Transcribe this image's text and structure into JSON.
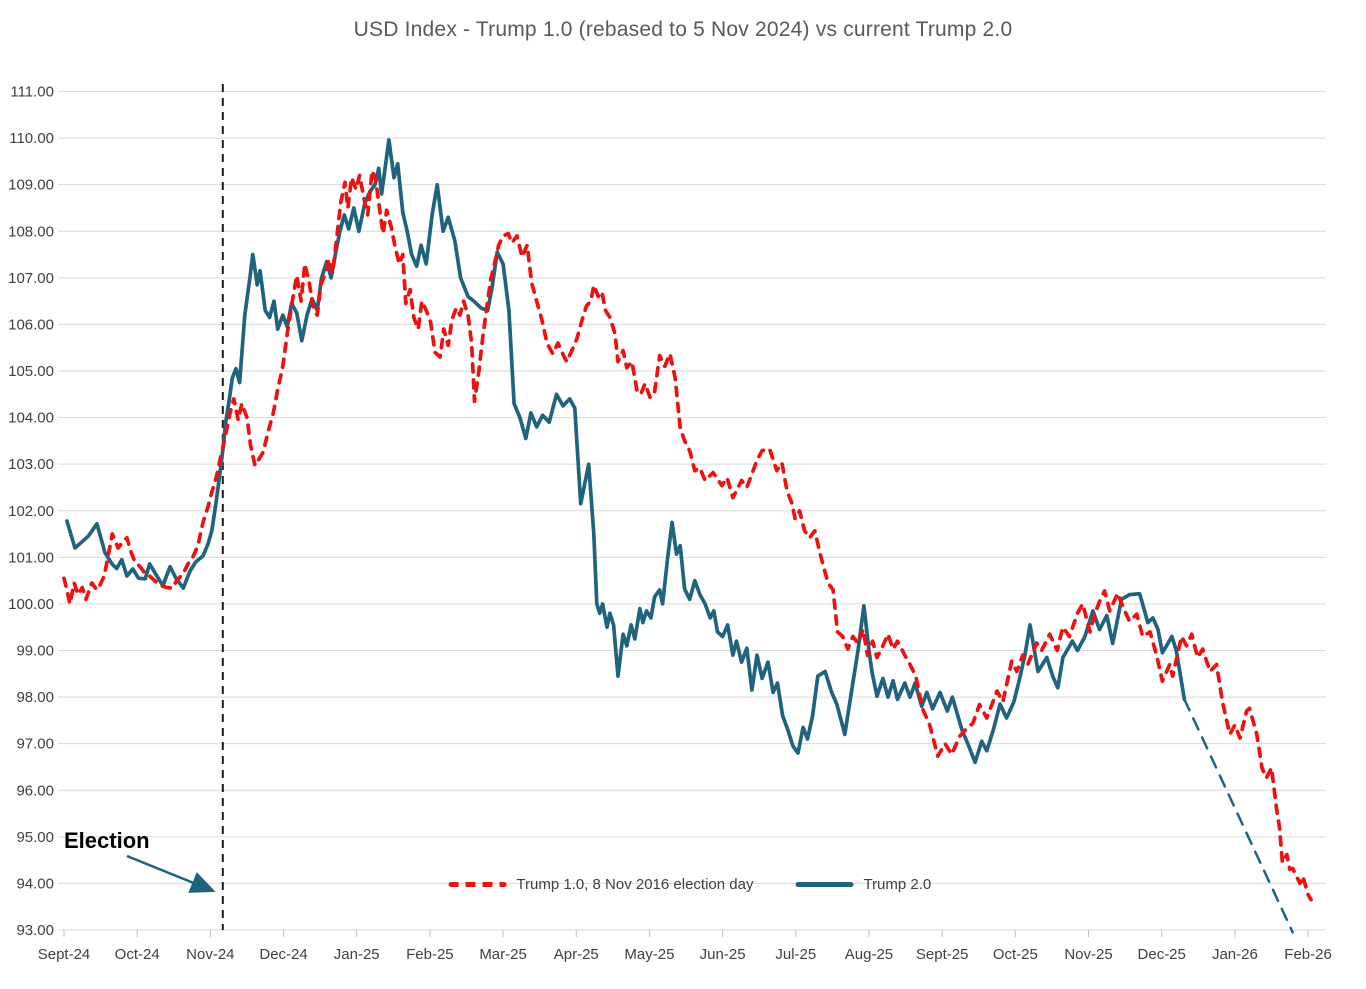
{
  "title": "USD Index - Trump 1.0  (rebased to 5 Nov 2024) vs current Trump 2.0",
  "annotation": {
    "label": "Election"
  },
  "colors": {
    "red": "#ee1111",
    "teal": "#1f637e",
    "grid": "#d9d9d9",
    "tick_text": "#404040",
    "title_text": "#595959",
    "election_line": "#1a1a1a"
  },
  "legend": [
    {
      "label": "Trump 1.0, 8 Nov 2016 election day",
      "color": "#ee1111",
      "style": "dashed"
    },
    {
      "label": "Trump 2.0",
      "color": "#1f637e",
      "style": "solid"
    }
  ],
  "chart_data": {
    "type": "line",
    "title": "USD Index - Trump 1.0  (rebased to 5 Nov 2024) vs current Trump 2.0",
    "xlabel": "",
    "ylabel": "",
    "grid": "horizontal",
    "legend_position": "bottom-center-inside",
    "ylim": [
      93,
      111
    ],
    "y_tick_step": 1,
    "y_tick_labels": [
      "93.00",
      "94.00",
      "95.00",
      "96.00",
      "97.00",
      "98.00",
      "99.00",
      "100.00",
      "101.00",
      "102.00",
      "103.00",
      "104.00",
      "105.00",
      "106.00",
      "107.00",
      "108.00",
      "109.00",
      "110.00",
      "111.00"
    ],
    "x_tick_labels": [
      "Sept-24",
      "Oct-24",
      "Nov-24",
      "Dec-24",
      "Jan-25",
      "Feb-25",
      "Mar-25",
      "Apr-25",
      "May-25",
      "Jun-25",
      "Jul-25",
      "Aug-25",
      "Sept-25",
      "Oct-25",
      "Nov-25",
      "Dec-25",
      "Jan-26",
      "Feb-26"
    ],
    "election_line_x": 2.17,
    "election_annotation": "Election",
    "series": [
      {
        "name": "Trump 2.0",
        "color": "#1f637e",
        "dash": false,
        "projection": false,
        "x": [
          0.04,
          0.15,
          0.33,
          0.45,
          0.56,
          0.66,
          0.72,
          0.79,
          0.86,
          0.94,
          1.02,
          1.11,
          1.17,
          1.27,
          1.35,
          1.45,
          1.53,
          1.63,
          1.72,
          1.8,
          1.9,
          1.97,
          2.02,
          2.08,
          2.13,
          2.17,
          2.21,
          2.25,
          2.3,
          2.35,
          2.4,
          2.47,
          2.54,
          2.58,
          2.64,
          2.68,
          2.75,
          2.81,
          2.87,
          2.92,
          2.99,
          3.05,
          3.11,
          3.18,
          3.25,
          3.32,
          3.39,
          3.46,
          3.52,
          3.59,
          3.65,
          3.72,
          3.77,
          3.83,
          3.89,
          3.96,
          4.03,
          4.11,
          4.18,
          4.25,
          4.3,
          4.34,
          4.44,
          4.51,
          4.56,
          4.63,
          4.69,
          4.75,
          4.82,
          4.88,
          4.95,
          5.03,
          5.1,
          5.18,
          5.25,
          5.34,
          5.42,
          5.52,
          5.6,
          5.7,
          5.79,
          5.85,
          5.92,
          6.0,
          6.08,
          6.15,
          6.23,
          6.31,
          6.38,
          6.46,
          6.54,
          6.63,
          6.73,
          6.82,
          6.91,
          6.98,
          7.06,
          7.17,
          7.24,
          7.28,
          7.32,
          7.36,
          7.42,
          7.46,
          7.51,
          7.57,
          7.64,
          7.69,
          7.75,
          7.8,
          7.87,
          7.91,
          7.96,
          8.02,
          8.07,
          8.14,
          8.18,
          8.25,
          8.31,
          8.37,
          8.42,
          8.48,
          8.55,
          8.62,
          8.69,
          8.76,
          8.83,
          8.88,
          8.93,
          9.0,
          9.07,
          9.14,
          9.19,
          9.26,
          9.33,
          9.4,
          9.47,
          9.54,
          9.62,
          9.69,
          9.75,
          9.82,
          9.89,
          9.96,
          10.03,
          10.1,
          10.16,
          10.23,
          10.3,
          10.4,
          10.49,
          10.56,
          10.67,
          10.77,
          10.85,
          10.93,
          11.0,
          11.04,
          11.11,
          11.19,
          11.26,
          11.33,
          11.39,
          11.49,
          11.56,
          11.63,
          11.72,
          11.79,
          11.87,
          11.97,
          12.07,
          12.14,
          12.27,
          12.35,
          12.45,
          12.54,
          12.61,
          12.7,
          12.79,
          12.88,
          12.98,
          13.06,
          13.13,
          13.2,
          13.31,
          13.43,
          13.51,
          13.58,
          13.65,
          13.78,
          13.85,
          13.95,
          14.06,
          14.15,
          14.25,
          14.33,
          14.45,
          14.56,
          14.7,
          14.81,
          14.88,
          14.95,
          15.01,
          15.14,
          15.2,
          15.31
        ],
        "y": [
          101.78,
          101.2,
          101.45,
          101.72,
          101.1,
          100.85,
          100.76,
          100.95,
          100.6,
          100.75,
          100.55,
          100.54,
          100.86,
          100.6,
          100.39,
          100.8,
          100.55,
          100.34,
          100.7,
          100.9,
          101.03,
          101.3,
          101.57,
          102.2,
          102.8,
          103.3,
          103.9,
          104.3,
          104.85,
          105.05,
          104.75,
          106.2,
          107.0,
          107.5,
          106.85,
          107.15,
          106.3,
          106.15,
          106.5,
          105.9,
          106.2,
          105.95,
          106.45,
          106.25,
          105.65,
          106.2,
          106.55,
          106.3,
          107.0,
          107.35,
          107.0,
          107.6,
          108.0,
          108.35,
          108.05,
          108.5,
          108.0,
          108.6,
          108.85,
          109.0,
          109.35,
          108.8,
          109.96,
          109.15,
          109.45,
          108.4,
          108.0,
          107.5,
          107.25,
          107.7,
          107.3,
          108.35,
          109.0,
          108.0,
          108.3,
          107.8,
          107.0,
          106.6,
          106.5,
          106.35,
          106.3,
          106.8,
          107.55,
          107.3,
          106.3,
          104.3,
          104.0,
          103.55,
          104.1,
          103.8,
          104.05,
          103.9,
          104.5,
          104.25,
          104.4,
          104.2,
          102.15,
          103.0,
          101.5,
          100.0,
          99.8,
          100.0,
          99.5,
          99.8,
          99.55,
          98.45,
          99.35,
          99.1,
          99.55,
          99.25,
          99.9,
          99.6,
          99.85,
          99.7,
          100.15,
          100.3,
          100.0,
          101.0,
          101.75,
          101.07,
          101.25,
          100.32,
          100.1,
          100.5,
          100.2,
          100.0,
          99.7,
          99.85,
          99.4,
          99.3,
          99.55,
          98.9,
          99.2,
          98.75,
          99.05,
          98.15,
          98.9,
          98.4,
          98.75,
          98.1,
          98.3,
          97.6,
          97.3,
          96.95,
          96.8,
          97.35,
          97.1,
          97.6,
          98.45,
          98.55,
          98.1,
          97.85,
          97.2,
          98.2,
          99.0,
          99.96,
          99.0,
          98.55,
          98.02,
          98.4,
          98.0,
          98.35,
          97.95,
          98.3,
          98.0,
          98.3,
          97.8,
          98.1,
          97.75,
          98.1,
          97.7,
          98.0,
          97.3,
          97.0,
          96.6,
          97.05,
          96.85,
          97.3,
          97.85,
          97.55,
          97.9,
          98.4,
          98.9,
          99.55,
          98.55,
          98.85,
          98.45,
          98.2,
          98.85,
          99.2,
          99.0,
          99.3,
          99.85,
          99.45,
          99.75,
          99.15,
          100.1,
          100.2,
          100.22,
          99.6,
          99.7,
          99.45,
          98.95,
          99.3,
          99.0,
          97.95
        ]
      },
      {
        "name": "Trump 2.0 dashed extension",
        "color": "#1f637e",
        "dash": true,
        "projection": true,
        "x": [
          15.31,
          16.79
        ],
        "y": [
          97.95,
          92.95
        ]
      },
      {
        "name": "Trump 1.0, 8 Nov 2016 election day",
        "color": "#ee1111",
        "dash": true,
        "projection": false,
        "x": [
          0.0,
          0.04,
          0.08,
          0.14,
          0.19,
          0.25,
          0.3,
          0.38,
          0.45,
          0.49,
          0.55,
          0.6,
          0.66,
          0.74,
          0.81,
          0.86,
          0.92,
          0.97,
          1.04,
          1.11,
          1.17,
          1.24,
          1.31,
          1.41,
          1.48,
          1.54,
          1.63,
          1.69,
          1.76,
          1.83,
          1.9,
          1.97,
          2.02,
          2.06,
          2.1,
          2.14,
          2.17,
          2.23,
          2.27,
          2.32,
          2.38,
          2.43,
          2.5,
          2.55,
          2.61,
          2.66,
          2.72,
          2.79,
          2.86,
          2.92,
          2.99,
          3.06,
          3.13,
          3.18,
          3.24,
          3.29,
          3.35,
          3.4,
          3.46,
          3.51,
          3.57,
          3.62,
          3.67,
          3.73,
          3.78,
          3.84,
          3.88,
          3.93,
          3.99,
          4.04,
          4.1,
          4.15,
          4.21,
          4.26,
          4.32,
          4.36,
          4.41,
          4.47,
          4.52,
          4.58,
          4.63,
          4.67,
          4.73,
          4.78,
          4.84,
          4.89,
          4.95,
          5.01,
          5.07,
          5.14,
          5.19,
          5.25,
          5.3,
          5.36,
          5.41,
          5.46,
          5.52,
          5.57,
          5.61,
          5.67,
          5.72,
          5.78,
          5.83,
          5.89,
          5.94,
          6.0,
          6.07,
          6.12,
          6.19,
          6.26,
          6.33,
          6.39,
          6.45,
          6.53,
          6.6,
          6.68,
          6.75,
          6.82,
          6.87,
          6.94,
          7.01,
          7.08,
          7.14,
          7.2,
          7.24,
          7.3,
          7.35,
          7.4,
          7.46,
          7.53,
          7.57,
          7.64,
          7.69,
          7.76,
          7.83,
          7.88,
          7.94,
          8.01,
          8.07,
          8.14,
          8.21,
          8.28,
          8.35,
          8.42,
          8.48,
          8.55,
          8.62,
          8.69,
          8.76,
          8.87,
          8.99,
          9.06,
          9.14,
          9.26,
          9.33,
          9.47,
          9.54,
          9.64,
          9.74,
          9.81,
          9.88,
          9.95,
          9.99,
          10.05,
          10.12,
          10.19,
          10.26,
          10.33,
          10.37,
          10.44,
          10.51,
          10.57,
          10.64,
          10.71,
          10.78,
          10.85,
          10.92,
          10.98,
          11.05,
          11.11,
          11.19,
          11.26,
          11.33,
          11.39,
          11.49,
          11.56,
          11.64,
          11.73,
          11.83,
          11.94,
          12.04,
          12.13,
          12.24,
          12.32,
          12.42,
          12.51,
          12.61,
          12.75,
          12.83,
          12.95,
          13.02,
          13.1,
          13.17,
          13.29,
          13.36,
          13.47,
          13.57,
          13.65,
          13.74,
          13.85,
          13.92,
          14.02,
          14.09,
          14.15,
          14.22,
          14.29,
          14.4,
          14.48,
          14.56,
          14.66,
          14.74,
          14.84,
          14.93,
          15.01,
          15.11,
          15.15,
          15.27,
          15.34,
          15.41,
          15.49,
          15.56,
          15.66,
          15.75,
          15.83,
          15.93,
          16.0,
          16.07,
          16.16,
          16.2,
          16.3,
          16.37,
          16.43,
          16.5,
          16.57,
          16.61,
          16.65,
          16.71,
          16.75,
          16.79,
          16.89,
          16.93,
          17.0,
          17.04
        ],
        "y": [
          100.55,
          100.3,
          100.0,
          100.45,
          100.2,
          100.35,
          100.1,
          100.45,
          100.3,
          100.4,
          100.6,
          101.0,
          101.5,
          101.2,
          101.35,
          101.42,
          101.1,
          100.9,
          100.8,
          100.65,
          100.6,
          100.5,
          100.4,
          100.35,
          100.34,
          100.5,
          100.65,
          100.85,
          101.0,
          101.25,
          101.75,
          102.1,
          102.4,
          102.6,
          102.85,
          103.15,
          103.35,
          103.8,
          104.1,
          104.4,
          103.95,
          104.3,
          104.0,
          103.4,
          102.97,
          103.1,
          103.25,
          103.7,
          104.1,
          104.6,
          105.1,
          105.9,
          106.6,
          107.05,
          106.5,
          107.3,
          106.9,
          106.4,
          106.2,
          106.85,
          107.1,
          107.4,
          107.1,
          107.9,
          108.6,
          109.05,
          108.5,
          109.15,
          108.9,
          109.2,
          108.7,
          108.35,
          109.3,
          109.1,
          108.4,
          107.95,
          108.45,
          108.1,
          107.7,
          107.3,
          107.5,
          106.45,
          106.75,
          106.15,
          105.9,
          106.5,
          106.3,
          106.05,
          105.4,
          105.3,
          105.9,
          105.55,
          106.1,
          106.35,
          106.2,
          106.5,
          106.2,
          105.6,
          104.35,
          105.0,
          105.7,
          106.4,
          106.95,
          107.35,
          107.7,
          107.9,
          107.95,
          107.75,
          107.9,
          107.45,
          107.7,
          106.9,
          106.55,
          106.1,
          105.6,
          105.37,
          105.6,
          105.35,
          105.2,
          105.44,
          105.7,
          106.1,
          106.4,
          106.5,
          106.84,
          106.6,
          106.7,
          106.3,
          106.15,
          105.8,
          105.2,
          105.44,
          105.07,
          105.2,
          104.58,
          104.5,
          104.73,
          104.43,
          104.55,
          105.33,
          105.1,
          105.37,
          104.86,
          103.78,
          103.5,
          103.29,
          102.86,
          102.92,
          102.65,
          102.82,
          102.54,
          102.71,
          102.28,
          102.65,
          102.5,
          103.08,
          103.29,
          103.33,
          102.86,
          103.03,
          102.43,
          102.15,
          101.83,
          102.0,
          101.57,
          101.42,
          101.57,
          101.1,
          100.85,
          100.45,
          100.3,
          99.4,
          99.3,
          99.03,
          99.3,
          99.15,
          99.45,
          98.9,
          99.2,
          98.85,
          99.1,
          99.35,
          99.03,
          99.2,
          98.9,
          98.7,
          98.45,
          97.76,
          97.4,
          96.73,
          97.0,
          96.77,
          97.16,
          97.3,
          97.44,
          97.84,
          97.55,
          98.13,
          97.9,
          98.77,
          98.55,
          98.9,
          98.7,
          99.16,
          99.0,
          99.35,
          99.0,
          99.5,
          99.3,
          99.8,
          100.0,
          99.4,
          99.8,
          100.05,
          100.28,
          99.85,
          100.23,
          99.9,
          99.63,
          99.78,
          99.3,
          99.4,
          98.9,
          98.34,
          98.7,
          98.45,
          99.3,
          99.1,
          99.35,
          98.85,
          99.03,
          98.55,
          98.7,
          97.9,
          97.2,
          97.4,
          97.12,
          97.7,
          97.76,
          97.2,
          96.48,
          96.26,
          96.48,
          95.6,
          95.2,
          94.45,
          94.62,
          94.3,
          94.32,
          94.0,
          94.15,
          93.76,
          93.65
        ]
      }
    ]
  }
}
